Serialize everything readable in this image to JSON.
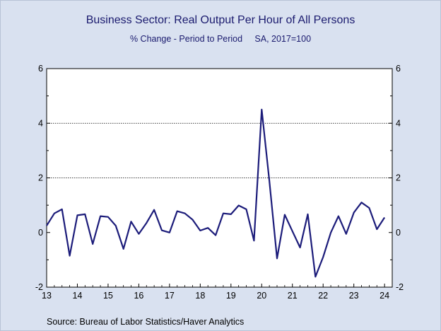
{
  "colors": {
    "line": "#1c1c7a",
    "plot_bg": "#ffffff",
    "page_bg": "#d9e1f0"
  },
  "chart_data": {
    "type": "line",
    "title": "Business Sector: Real Output Per Hour of All Persons",
    "subtitle": "% Change - Period to Period     SA, 2017=100",
    "source": "Source:  Bureau of Labor Statistics/Haver Analytics",
    "ylim": [
      -2,
      6
    ],
    "yticks": [
      "-2",
      "0",
      "2",
      "4",
      "6"
    ],
    "xlim": [
      2013,
      2024.25
    ],
    "xticks": [
      "13",
      "14",
      "15",
      "16",
      "17",
      "18",
      "19",
      "20",
      "21",
      "22",
      "23",
      "24"
    ],
    "grid_y": [
      2,
      4
    ],
    "series": [
      {
        "values": [
          0.25,
          0.7,
          0.85,
          -0.85,
          0.63,
          0.67,
          -0.42,
          0.6,
          0.57,
          0.25,
          -0.6,
          0.4,
          -0.05,
          0.35,
          0.83,
          0.08,
          0.0,
          0.78,
          0.7,
          0.47,
          0.07,
          0.17,
          -0.1,
          0.7,
          0.67,
          0.99,
          0.85,
          -0.3,
          4.5,
          1.9,
          -0.95,
          0.65,
          0.05,
          -0.55,
          0.67,
          -1.62,
          -0.9,
          0.0,
          0.6,
          -0.05,
          0.73,
          1.1,
          0.9,
          0.12,
          0.55
        ]
      }
    ]
  }
}
